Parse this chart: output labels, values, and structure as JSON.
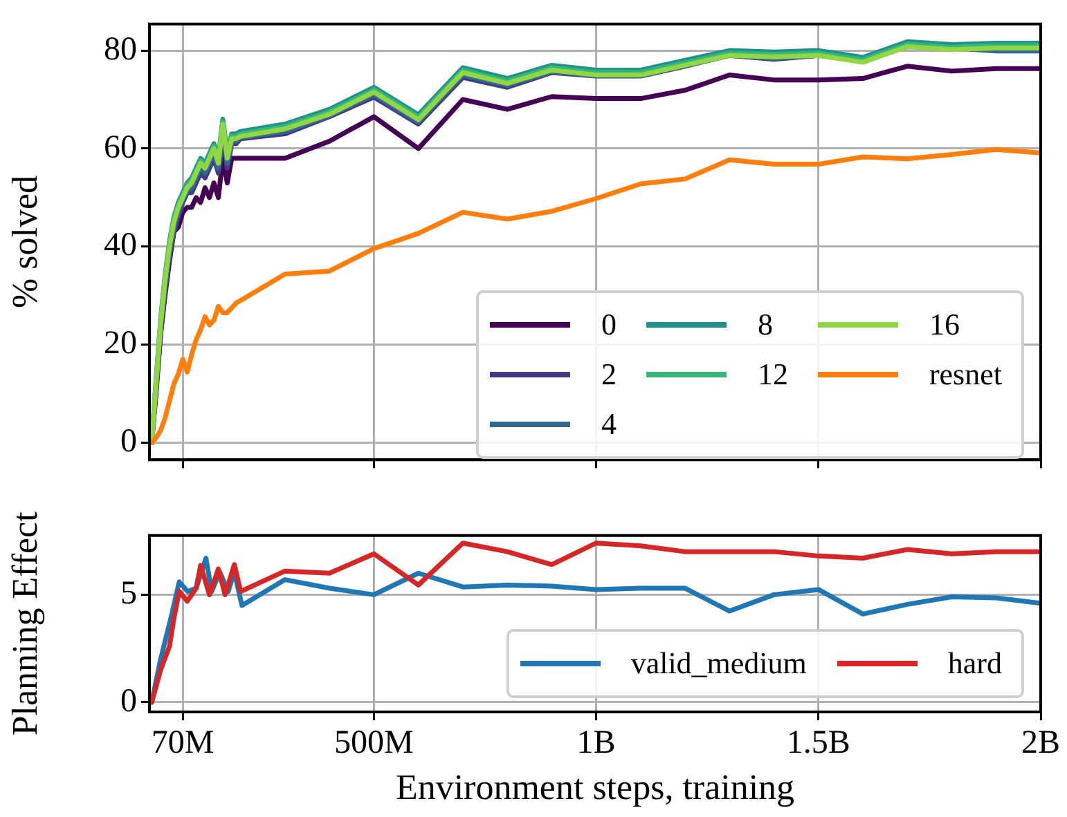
{
  "chart_data": [
    {
      "type": "line",
      "ylabel": "% solved",
      "x": [
        0,
        10000000,
        20000000,
        30000000,
        40000000,
        50000000,
        60000000,
        70000000,
        80000000,
        90000000,
        100000000,
        110000000,
        120000000,
        130000000,
        140000000,
        150000000,
        160000000,
        170000000,
        180000000,
        190000000,
        200000000,
        300000000,
        400000000,
        500000000,
        600000000,
        700000000,
        800000000,
        900000000,
        1000000000,
        1100000000,
        1200000000,
        1300000000,
        1400000000,
        1500000000,
        1600000000,
        1700000000,
        1800000000,
        1900000000,
        2000000000
      ],
      "xlim": [
        -5000000,
        2000000000
      ],
      "xticks": [
        {
          "value": 70000000,
          "label": null
        },
        {
          "value": 500000000,
          "label": null
        },
        {
          "value": 1000000000,
          "label": null
        },
        {
          "value": 1500000000,
          "label": null
        },
        {
          "value": 2000000000,
          "label": null
        }
      ],
      "ylim": [
        -3.5,
        85.4
      ],
      "yticks": [
        0,
        20,
        40,
        60,
        80
      ],
      "grid": true,
      "legend": "bottom right",
      "tick_labels": "y",
      "series": [
        {
          "name": "0",
          "color": "#440154",
          "values": [
            0,
            10,
            22,
            30,
            37,
            43,
            44,
            47,
            48,
            48,
            50,
            49,
            52,
            50,
            53,
            50,
            58,
            53,
            58,
            58,
            58,
            58,
            61.5,
            66.5,
            60,
            70,
            68,
            70.6,
            70.2,
            70.2,
            71.9,
            75,
            74,
            74,
            74.3,
            76.8,
            75.8,
            76.3,
            76.3
          ]
        },
        {
          "name": "2",
          "color": "#443983",
          "values": [
            0,
            11,
            22,
            31,
            38,
            43,
            46,
            49,
            51,
            51,
            53,
            55,
            54,
            56,
            58,
            55,
            62,
            56,
            61,
            61,
            62,
            63,
            66.5,
            70.5,
            65,
            74.5,
            72.5,
            75.5,
            74.8,
            74.8,
            76.8,
            79,
            78.2,
            79,
            78.2,
            80.8,
            80.8,
            80.8,
            80.8
          ]
        },
        {
          "name": "4",
          "color": "#31688e",
          "values": [
            0,
            11.5,
            23.5,
            32,
            39,
            44,
            47,
            49.5,
            51.5,
            52,
            54,
            56,
            55,
            57,
            59,
            56,
            63.5,
            57,
            61.5,
            61.5,
            62.2,
            63.5,
            66.7,
            71,
            65.4,
            75,
            72.9,
            75.7,
            74.9,
            74.9,
            76.9,
            79,
            78.4,
            79,
            77.9,
            80.8,
            80.5,
            79.9,
            79.9
          ]
        },
        {
          "name": "8",
          "color": "#21918c",
          "values": [
            0,
            13,
            25,
            34,
            41,
            46,
            49,
            51,
            53,
            54,
            56,
            58,
            57,
            59,
            61,
            58,
            66,
            59,
            63,
            63,
            63.5,
            65,
            68,
            72.5,
            66.9,
            76.5,
            74.3,
            77,
            76,
            76,
            78,
            80,
            79.7,
            80,
            78.6,
            81.8,
            81.2,
            81.5,
            81.5
          ]
        },
        {
          "name": "12",
          "color": "#35b779",
          "values": [
            0,
            12.5,
            24.5,
            33.5,
            40.5,
            45.5,
            48.5,
            50.5,
            52.5,
            53.5,
            55.5,
            57.5,
            56.5,
            58.5,
            60.5,
            57.5,
            65.5,
            58.5,
            62.5,
            62.5,
            63,
            64.5,
            67.5,
            72,
            66.4,
            76,
            73.8,
            76.5,
            75.5,
            75.5,
            77.5,
            79.5,
            79.2,
            79.5,
            78.1,
            81.3,
            80.7,
            81,
            81
          ]
        },
        {
          "name": "16",
          "color": "#90d743",
          "values": [
            0,
            12,
            24,
            33,
            40,
            45,
            48,
            50,
            52,
            53,
            55,
            57,
            56,
            58,
            60,
            57,
            65,
            58,
            62,
            62,
            62.5,
            64,
            67,
            71.5,
            65.9,
            75.5,
            73.3,
            76,
            75,
            75,
            77,
            79,
            78.7,
            79,
            77.6,
            80.8,
            80.2,
            80.5,
            80.5
          ]
        },
        {
          "name": "resnet",
          "color": "#ff7f0e",
          "values": [
            0,
            1,
            2.5,
            5,
            8.5,
            12,
            14,
            17,
            14.4,
            18,
            21,
            23,
            25.7,
            24,
            25,
            27.8,
            26.5,
            26.5,
            27.5,
            28.5,
            29,
            34.4,
            35,
            39.6,
            42.7,
            47,
            45.6,
            47.2,
            49.8,
            52.8,
            53.8,
            57.7,
            56.8,
            56.8,
            58.3,
            57.9,
            58.8,
            59.8,
            59.1
          ]
        }
      ]
    },
    {
      "type": "line",
      "xlabel": "Environment steps, training",
      "ylabel": "Planning Effect",
      "xlim": [
        -5000000,
        2000000000
      ],
      "xticks": [
        {
          "value": 70000000,
          "label": "70M"
        },
        {
          "value": 500000000,
          "label": "500M"
        },
        {
          "value": 1000000000,
          "label": "1B"
        },
        {
          "value": 1500000000,
          "label": "1.5B"
        },
        {
          "value": 2000000000,
          "label": "2B"
        }
      ],
      "ylim": [
        -0.45,
        7.75
      ],
      "yticks": [
        0,
        5
      ],
      "grid": true,
      "legend": "bottom right",
      "series": [
        {
          "name": "valid_medium",
          "color": "#1f77b4",
          "x": [
            0,
            20000000,
            43000000,
            62000000,
            81000000,
            100000000,
            122000000,
            135000000,
            153000000,
            172000000,
            186000000,
            203000000,
            300000000,
            400000000,
            500000000,
            600000000,
            700000000,
            800000000,
            900000000,
            1000000000,
            1100000000,
            1200000000,
            1300000000,
            1400000000,
            1500000000,
            1600000000,
            1700000000,
            1800000000,
            1900000000,
            2000000000
          ],
          "values": [
            0,
            2,
            3.9,
            5.6,
            5.15,
            5.3,
            6.7,
            5.15,
            6.06,
            5.15,
            6.06,
            4.5,
            5.7,
            5.3,
            5.0,
            6.0,
            5.36,
            5.45,
            5.4,
            5.24,
            5.3,
            5.3,
            4.24,
            5.0,
            5.24,
            4.1,
            4.55,
            4.9,
            4.85,
            4.6
          ]
        },
        {
          "name": "hard",
          "color": "#d62728",
          "x": [
            0,
            20000000,
            40000000,
            50000000,
            62000000,
            80000000,
            100000000,
            110000000,
            130000000,
            150000000,
            165000000,
            186000000,
            200000000,
            300000000,
            400000000,
            500000000,
            600000000,
            700000000,
            800000000,
            900000000,
            1000000000,
            1100000000,
            1200000000,
            1300000000,
            1400000000,
            1500000000,
            1600000000,
            1700000000,
            1800000000,
            1900000000,
            2000000000
          ],
          "values": [
            0,
            1.5,
            2.6,
            3.9,
            5.15,
            4.7,
            5.3,
            6.36,
            5.0,
            6.2,
            5.0,
            6.4,
            5.15,
            6.1,
            6.0,
            6.9,
            5.45,
            7.4,
            7.0,
            6.4,
            7.4,
            7.27,
            7.0,
            7.0,
            7.0,
            6.8,
            6.7,
            7.1,
            6.9,
            7.0,
            7.0
          ]
        }
      ]
    }
  ]
}
